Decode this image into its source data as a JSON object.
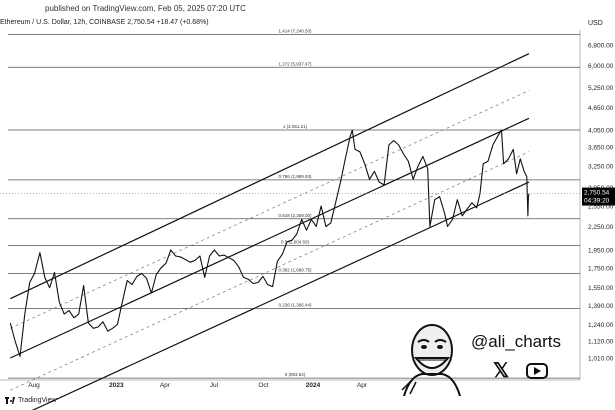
{
  "header": {
    "published": "published on TradingView.com, Feb 05, 2025 07:20 UTC",
    "symbol": "Ethereum / U.S. Dollar, 12h, COINBASE",
    "price": "2,750.54",
    "change": "+18.47 (+0.68%)",
    "currency": "USD"
  },
  "footer": {
    "brand": "TradingView"
  },
  "watermark": {
    "handle": "@ali_charts",
    "x_icon_glyph": "𝕏"
  },
  "colors": {
    "line": "#111111",
    "fib": "#555555",
    "dashed": "#777777",
    "price_badge": "#000000"
  },
  "chart_data": {
    "type": "line",
    "y_scale": "log",
    "y_ticks": [
      {
        "value": 6800,
        "label": "6,800.00"
      },
      {
        "value": 6000,
        "label": "6,000.00"
      },
      {
        "value": 5250,
        "label": "5,250.00"
      },
      {
        "value": 4650,
        "label": "4,650.00"
      },
      {
        "value": 4050,
        "label": "4,050.00"
      },
      {
        "value": 3650,
        "label": "3,650.00"
      },
      {
        "value": 3250,
        "label": "3,250.00"
      },
      {
        "value": 2850,
        "label": "2,850.00"
      },
      {
        "value": 2550,
        "label": "2,550.00"
      },
      {
        "value": 2250,
        "label": "2,250.00"
      },
      {
        "value": 1950,
        "label": "1,950.00"
      },
      {
        "value": 1750,
        "label": "1,750.00"
      },
      {
        "value": 1550,
        "label": "1,550.00"
      },
      {
        "value": 1390,
        "label": "1,390.00"
      },
      {
        "value": 1240,
        "label": "1,240.00"
      },
      {
        "value": 1120,
        "label": "1,120.00"
      },
      {
        "value": 1010,
        "label": "1,010.00"
      }
    ],
    "x_ticks": [
      {
        "date": "2022-08-01",
        "label": "Aug"
      },
      {
        "date": "2023-01-01",
        "label": "2023"
      },
      {
        "date": "2023-04-01",
        "label": "Apr"
      },
      {
        "date": "2023-07-01",
        "label": "Jul"
      },
      {
        "date": "2023-10-01",
        "label": "Oct"
      },
      {
        "date": "2024-01-01",
        "label": "2024"
      },
      {
        "date": "2024-04-01",
        "label": "Apr"
      }
    ],
    "fib_levels": [
      {
        "ratio": "1.414",
        "value": 7248.5,
        "label": "1.414 (7,248.50)"
      },
      {
        "ratio": "1.272",
        "value": 5937.47,
        "label": "1.272 (5,937.47)"
      },
      {
        "ratio": "1",
        "value": 4051.21,
        "label": "1 (4,051.21)"
      },
      {
        "ratio": "0.786",
        "value": 2989.93,
        "label": "0.786 (2,989.93)"
      },
      {
        "ratio": "0.618",
        "value": 2359.0,
        "label": "0.618 (2,359.00)"
      },
      {
        "ratio": "0.5",
        "value": 2004.5,
        "label": "0.5 (2,004.50)"
      },
      {
        "ratio": "0.382",
        "value": 1689.75,
        "label": "0.382 (1,689.75)"
      },
      {
        "ratio": "0.236",
        "value": 1366.44,
        "label": "0.236 (1,366.44)"
      },
      {
        "ratio": "0",
        "value": 893.64,
        "label": "0 (893.64)"
      }
    ],
    "channel_lines": [
      {
        "style": "solid",
        "start": {
          "date": "2022-06-18",
          "value": 1450
        },
        "end": {
          "date": "2025-02-05",
          "value": 6450
        }
      },
      {
        "style": "dashed",
        "start": {
          "date": "2022-06-18",
          "value": 1210
        },
        "end": {
          "date": "2025-02-05",
          "value": 5150
        }
      },
      {
        "style": "solid",
        "start": {
          "date": "2022-06-18",
          "value": 1010
        },
        "end": {
          "date": "2025-02-05",
          "value": 4350
        }
      },
      {
        "style": "dashed",
        "start": {
          "date": "2022-06-18",
          "value": 830
        },
        "end": {
          "date": "2025-02-05",
          "value": 3550
        }
      },
      {
        "style": "solid",
        "start": {
          "date": "2022-06-18",
          "value": 690
        },
        "end": {
          "date": "2025-02-05",
          "value": 2950
        }
      }
    ],
    "series": [
      {
        "values": [
          {
            "date": "2022-06-18",
            "value": 1250
          },
          {
            "date": "2022-06-27",
            "value": 1120
          },
          {
            "date": "2022-07-06",
            "value": 1020
          },
          {
            "date": "2022-07-15",
            "value": 1320
          },
          {
            "date": "2022-07-24",
            "value": 1600
          },
          {
            "date": "2022-08-02",
            "value": 1690
          },
          {
            "date": "2022-08-12",
            "value": 1920
          },
          {
            "date": "2022-08-21",
            "value": 1650
          },
          {
            "date": "2022-08-30",
            "value": 1550
          },
          {
            "date": "2022-09-08",
            "value": 1700
          },
          {
            "date": "2022-09-17",
            "value": 1420
          },
          {
            "date": "2022-09-26",
            "value": 1320
          },
          {
            "date": "2022-10-05",
            "value": 1350
          },
          {
            "date": "2022-10-14",
            "value": 1290
          },
          {
            "date": "2022-10-23",
            "value": 1320
          },
          {
            "date": "2022-11-01",
            "value": 1570
          },
          {
            "date": "2022-11-10",
            "value": 1250
          },
          {
            "date": "2022-11-19",
            "value": 1210
          },
          {
            "date": "2022-11-28",
            "value": 1220
          },
          {
            "date": "2022-12-07",
            "value": 1260
          },
          {
            "date": "2022-12-16",
            "value": 1190
          },
          {
            "date": "2022-12-25",
            "value": 1210
          },
          {
            "date": "2023-01-03",
            "value": 1240
          },
          {
            "date": "2023-01-12",
            "value": 1420
          },
          {
            "date": "2023-01-21",
            "value": 1620
          },
          {
            "date": "2023-01-30",
            "value": 1580
          },
          {
            "date": "2023-02-08",
            "value": 1660
          },
          {
            "date": "2023-02-17",
            "value": 1690
          },
          {
            "date": "2023-02-26",
            "value": 1640
          },
          {
            "date": "2023-03-07",
            "value": 1500
          },
          {
            "date": "2023-03-16",
            "value": 1680
          },
          {
            "date": "2023-03-25",
            "value": 1750
          },
          {
            "date": "2023-04-03",
            "value": 1800
          },
          {
            "date": "2023-04-12",
            "value": 1950
          },
          {
            "date": "2023-04-21",
            "value": 1880
          },
          {
            "date": "2023-04-30",
            "value": 1870
          },
          {
            "date": "2023-05-09",
            "value": 1840
          },
          {
            "date": "2023-05-18",
            "value": 1810
          },
          {
            "date": "2023-05-27",
            "value": 1830
          },
          {
            "date": "2023-06-05",
            "value": 1880
          },
          {
            "date": "2023-06-14",
            "value": 1650
          },
          {
            "date": "2023-06-23",
            "value": 1880
          },
          {
            "date": "2023-07-02",
            "value": 1950
          },
          {
            "date": "2023-07-11",
            "value": 1880
          },
          {
            "date": "2023-07-20",
            "value": 1890
          },
          {
            "date": "2023-07-29",
            "value": 1860
          },
          {
            "date": "2023-08-07",
            "value": 1830
          },
          {
            "date": "2023-08-16",
            "value": 1760
          },
          {
            "date": "2023-08-25",
            "value": 1650
          },
          {
            "date": "2023-09-03",
            "value": 1630
          },
          {
            "date": "2023-09-12",
            "value": 1590
          },
          {
            "date": "2023-09-21",
            "value": 1600
          },
          {
            "date": "2023-09-30",
            "value": 1660
          },
          {
            "date": "2023-10-09",
            "value": 1580
          },
          {
            "date": "2023-10-18",
            "value": 1560
          },
          {
            "date": "2023-10-27",
            "value": 1820
          },
          {
            "date": "2023-11-05",
            "value": 1900
          },
          {
            "date": "2023-11-14",
            "value": 2050
          },
          {
            "date": "2023-11-23",
            "value": 2070
          },
          {
            "date": "2023-12-02",
            "value": 2150
          },
          {
            "date": "2023-12-11",
            "value": 2350
          },
          {
            "date": "2023-12-20",
            "value": 2200
          },
          {
            "date": "2023-12-29",
            "value": 2350
          },
          {
            "date": "2024-01-07",
            "value": 2250
          },
          {
            "date": "2024-01-16",
            "value": 2550
          },
          {
            "date": "2024-01-25",
            "value": 2250
          },
          {
            "date": "2024-02-03",
            "value": 2300
          },
          {
            "date": "2024-02-12",
            "value": 2600
          },
          {
            "date": "2024-02-21",
            "value": 2950
          },
          {
            "date": "2024-03-01",
            "value": 3400
          },
          {
            "date": "2024-03-10",
            "value": 3900
          },
          {
            "date": "2024-03-14",
            "value": 4050
          },
          {
            "date": "2024-03-19",
            "value": 3600
          },
          {
            "date": "2024-03-28",
            "value": 3550
          },
          {
            "date": "2024-04-06",
            "value": 3300
          },
          {
            "date": "2024-04-15",
            "value": 3000
          },
          {
            "date": "2024-04-24",
            "value": 3150
          },
          {
            "date": "2024-05-03",
            "value": 2950
          },
          {
            "date": "2024-05-12",
            "value": 2900
          },
          {
            "date": "2024-05-21",
            "value": 3700
          },
          {
            "date": "2024-05-30",
            "value": 3800
          },
          {
            "date": "2024-06-08",
            "value": 3700
          },
          {
            "date": "2024-06-17",
            "value": 3500
          },
          {
            "date": "2024-06-26",
            "value": 3350
          },
          {
            "date": "2024-07-05",
            "value": 3000
          },
          {
            "date": "2024-07-14",
            "value": 3250
          },
          {
            "date": "2024-07-23",
            "value": 3450
          },
          {
            "date": "2024-08-01",
            "value": 3200
          },
          {
            "date": "2024-08-05",
            "value": 2250
          },
          {
            "date": "2024-08-14",
            "value": 2650
          },
          {
            "date": "2024-08-23",
            "value": 2700
          },
          {
            "date": "2024-09-01",
            "value": 2450
          },
          {
            "date": "2024-09-07",
            "value": 2250
          },
          {
            "date": "2024-09-16",
            "value": 2350
          },
          {
            "date": "2024-09-25",
            "value": 2650
          },
          {
            "date": "2024-10-04",
            "value": 2400
          },
          {
            "date": "2024-10-13",
            "value": 2500
          },
          {
            "date": "2024-10-22",
            "value": 2600
          },
          {
            "date": "2024-10-31",
            "value": 2520
          },
          {
            "date": "2024-11-06",
            "value": 2750
          },
          {
            "date": "2024-11-12",
            "value": 3300
          },
          {
            "date": "2024-11-21",
            "value": 3350
          },
          {
            "date": "2024-11-30",
            "value": 3700
          },
          {
            "date": "2024-12-09",
            "value": 3900
          },
          {
            "date": "2024-12-16",
            "value": 4050
          },
          {
            "date": "2024-12-20",
            "value": 3300
          },
          {
            "date": "2024-12-29",
            "value": 3400
          },
          {
            "date": "2025-01-07",
            "value": 3600
          },
          {
            "date": "2025-01-13",
            "value": 3100
          },
          {
            "date": "2025-01-20",
            "value": 3400
          },
          {
            "date": "2025-01-27",
            "value": 3150
          },
          {
            "date": "2025-02-01",
            "value": 3050
          },
          {
            "date": "2025-02-03",
            "value": 2400
          },
          {
            "date": "2025-02-04",
            "value": 2700
          },
          {
            "date": "2025-02-05",
            "value": 2750.54
          }
        ]
      }
    ],
    "last_price": {
      "value": 2750.54,
      "label": "2,750.54",
      "countdown": "04:39:20"
    }
  }
}
